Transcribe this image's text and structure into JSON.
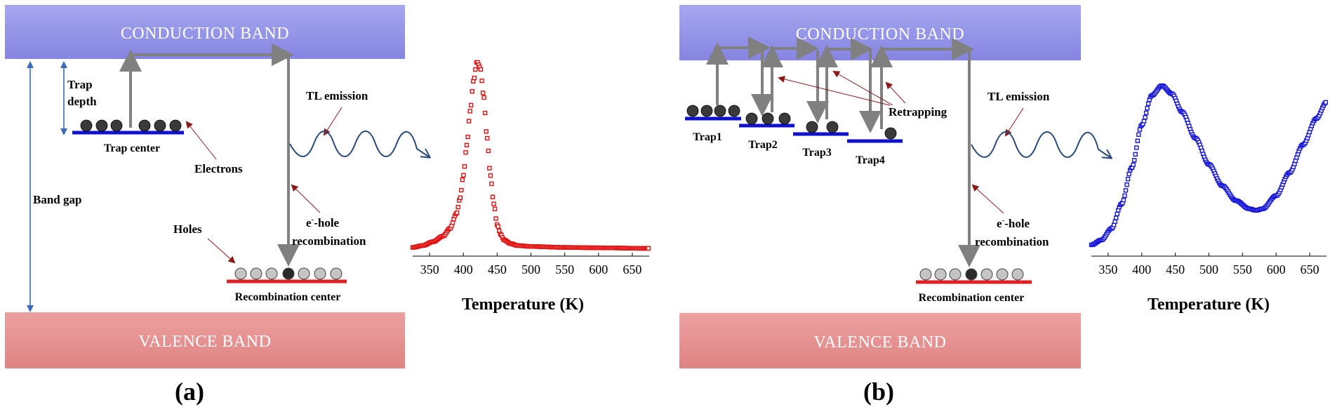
{
  "panel_a": {
    "panel_label": "(a)",
    "conduction_band": "CONDUCTION BAND",
    "valence_band": "VALENCE BAND",
    "trap_depth_1": "Trap",
    "trap_depth_2": "depth",
    "band_gap": "Band gap",
    "trap_center": "Trap center",
    "electrons": "Electrons",
    "holes": "Holes",
    "tl_emission": "TL emission",
    "recomb_1": "e-hole",
    "recomb_2": "recombination",
    "recomb_center": "Recombination center"
  },
  "panel_b": {
    "panel_label": "(b)",
    "conduction_band": "CONDUCTION BAND",
    "valence_band": "VALENCE BAND",
    "trap1": "Trap1",
    "trap2": "Trap2",
    "trap3": "Trap3",
    "trap4": "Trap4",
    "retrapping": "Retrapping",
    "tl_emission": "TL emission",
    "recomb_1": "e-hole",
    "recomb_2": "recombination",
    "recomb_center": "Recombination center"
  },
  "colors": {
    "conduction_band": "#9494ea",
    "valence_band": "#e89090",
    "trap_line": "#1010d0",
    "recomb_line": "#e02020",
    "arrow": "#808080",
    "curve_a": "#e01010",
    "curve_b": "#1515d8",
    "wave": "#2a4a78"
  },
  "chart_data": [
    {
      "type": "scatter",
      "xlabel": "Temperature (K)",
      "xlim": [
        325,
        675
      ],
      "xticks": [
        "350",
        "400",
        "450",
        "500",
        "550",
        "600",
        "650"
      ],
      "color": "#e01010",
      "x": [
        325,
        340,
        355,
        370,
        380,
        390,
        395,
        400,
        405,
        410,
        415,
        420,
        425,
        430,
        435,
        440,
        445,
        450,
        455,
        460,
        470,
        480,
        500,
        550,
        600,
        675
      ],
      "y": [
        0.02,
        0.03,
        0.05,
        0.08,
        0.12,
        0.2,
        0.28,
        0.4,
        0.56,
        0.74,
        0.9,
        1.0,
        0.97,
        0.82,
        0.6,
        0.4,
        0.25,
        0.14,
        0.09,
        0.06,
        0.04,
        0.03,
        0.025,
        0.02,
        0.018,
        0.015
      ]
    },
    {
      "type": "scatter",
      "xlabel": "Temperature (K)",
      "xlim": [
        325,
        675
      ],
      "xticks": [
        "350",
        "400",
        "450",
        "500",
        "550",
        "600",
        "650"
      ],
      "color": "#1515d8",
      "x": [
        325,
        340,
        355,
        370,
        385,
        400,
        415,
        430,
        445,
        460,
        480,
        500,
        520,
        540,
        560,
        570,
        580,
        600,
        620,
        640,
        660,
        675
      ],
      "y": [
        0.03,
        0.06,
        0.13,
        0.28,
        0.5,
        0.76,
        0.94,
        1.0,
        0.95,
        0.84,
        0.68,
        0.52,
        0.39,
        0.3,
        0.25,
        0.24,
        0.25,
        0.33,
        0.47,
        0.64,
        0.8,
        0.9
      ]
    }
  ]
}
